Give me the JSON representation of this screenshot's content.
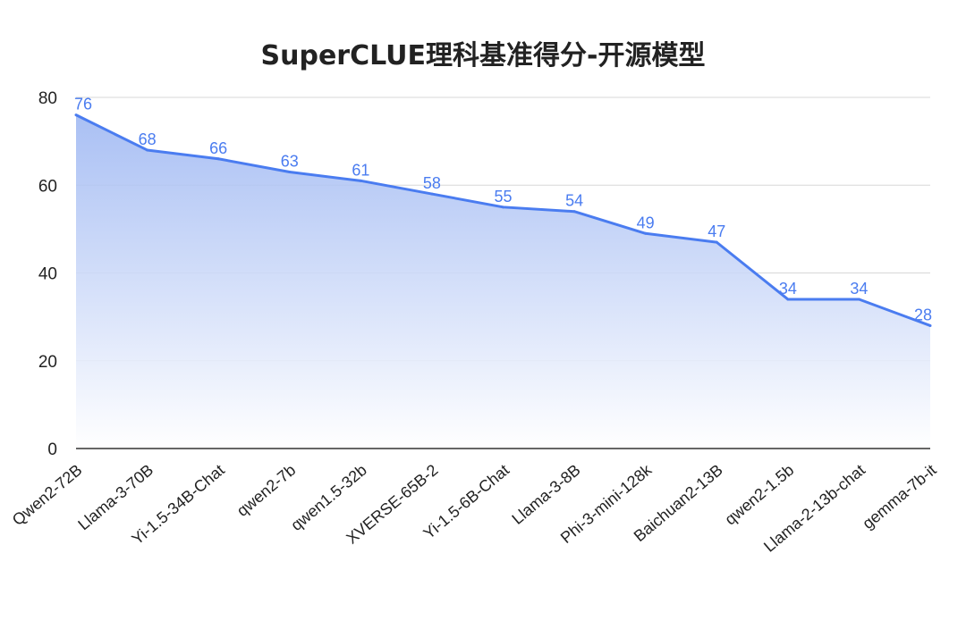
{
  "chart_data": {
    "type": "area",
    "title": "SuperCLUE理科基准得分-开源模型",
    "xlabel": "",
    "ylabel": "",
    "categories": [
      "Qwen2-72B",
      "Llama-3-70B",
      "Yi-1.5-34B-Chat",
      "qwen2-7b",
      "qwen1.5-32b",
      "XVERSE-65B-2",
      "Yi-1.5-6B-Chat",
      "Llama-3-8B",
      "Phi-3-mini-128k",
      "Baichuan2-13B",
      "qwen2-1.5b",
      "Llama-2-13b-chat",
      "gemma-7b-it"
    ],
    "values": [
      76,
      68,
      66,
      63,
      61,
      58,
      55,
      54,
      49,
      47,
      34,
      34,
      28
    ],
    "ylim": [
      0,
      80
    ],
    "yticks": [
      0,
      20,
      40,
      60,
      80
    ],
    "grid": true,
    "legend": "none",
    "colors": {
      "line": "#4a7cf0",
      "fill_top": "#9bb5f2",
      "fill_bottom": "#ffffff",
      "label": "#4a7cf0"
    }
  }
}
